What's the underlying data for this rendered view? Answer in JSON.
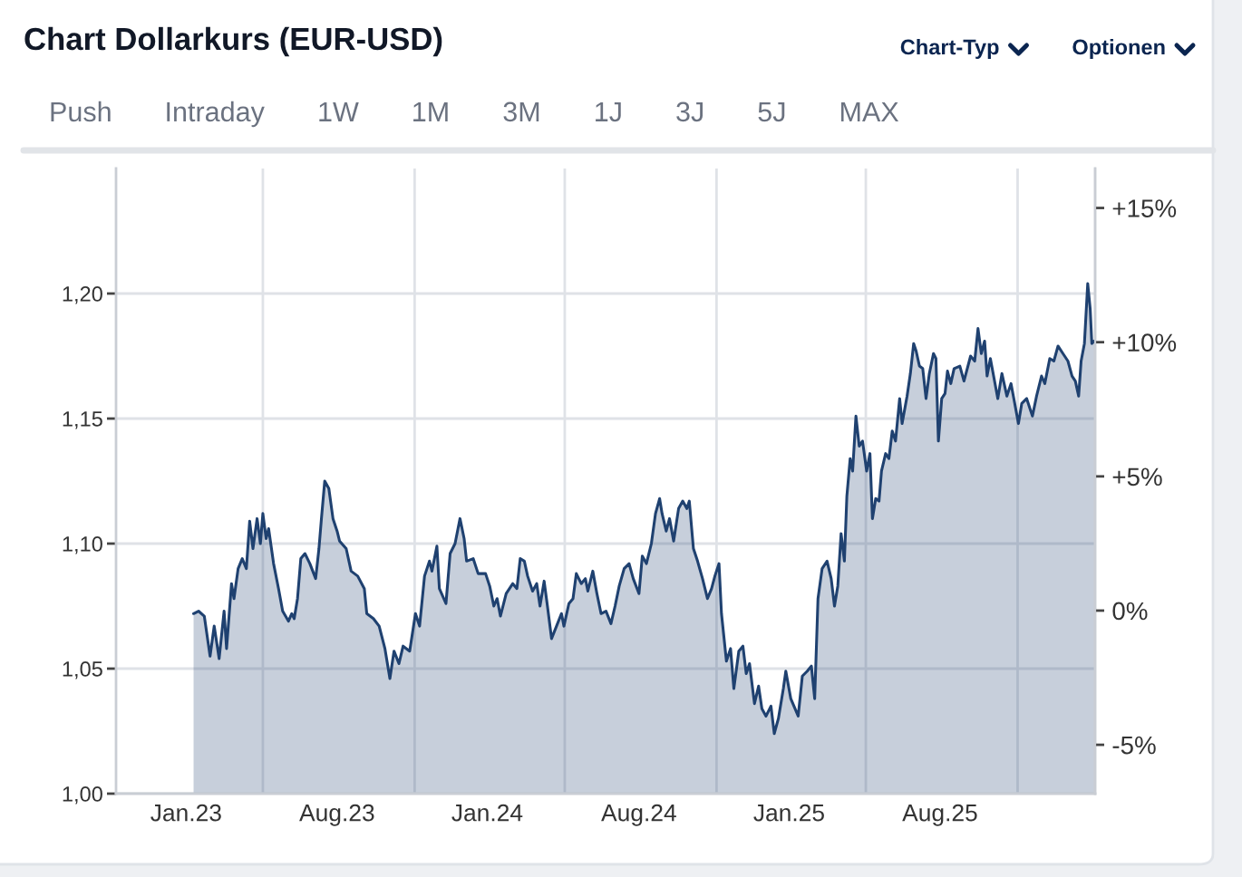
{
  "chart_data": {
    "type": "area",
    "title": "Chart Dollarkurs (EUR-USD)",
    "annotations": [
      "Chart-Typ",
      "Optionen",
      "Push",
      "Intraday",
      "1W",
      "1M",
      "3M",
      "1J",
      "3J",
      "5J",
      "MAX"
    ],
    "x": [
      "2023-02-09",
      "2023-02-15",
      "2023-02-22",
      "2023-03-01",
      "2023-03-06",
      "2023-03-12",
      "2023-03-18",
      "2023-03-21",
      "2023-03-27",
      "2023-03-30",
      "2023-04-04",
      "2023-04-09",
      "2023-04-14",
      "2023-04-18",
      "2023-04-22",
      "2023-04-27",
      "2023-05-01",
      "2023-05-04",
      "2023-05-08",
      "2023-05-11",
      "2023-05-17",
      "2023-05-23",
      "2023-05-28",
      "2023-06-04",
      "2023-06-08",
      "2023-06-11",
      "2023-06-15",
      "2023-06-19",
      "2023-06-24",
      "2023-06-30",
      "2023-07-07",
      "2023-07-11",
      "2023-07-14",
      "2023-07-18",
      "2023-07-23",
      "2023-07-28",
      "2023-08-02",
      "2023-08-05",
      "2023-08-13",
      "2023-08-19",
      "2023-08-27",
      "2023-09-04",
      "2023-09-07",
      "2023-09-15",
      "2023-09-22",
      "2023-09-29",
      "2023-10-05",
      "2023-10-10",
      "2023-10-16",
      "2023-10-21",
      "2023-10-29",
      "2023-11-05",
      "2023-11-10",
      "2023-11-16",
      "2023-11-22",
      "2023-11-25",
      "2023-12-01",
      "2023-12-04",
      "2023-12-12",
      "2023-12-17",
      "2023-12-23",
      "2023-12-29",
      "2024-01-03",
      "2024-01-06",
      "2024-01-14",
      "2024-01-20",
      "2024-01-29",
      "2024-02-03",
      "2024-02-08",
      "2024-02-12",
      "2024-02-16",
      "2024-02-23",
      "2024-03-02",
      "2024-03-07",
      "2024-03-11",
      "2024-03-16",
      "2024-03-20",
      "2024-03-26",
      "2024-03-31",
      "2024-04-04",
      "2024-04-09",
      "2024-04-13",
      "2024-04-18",
      "2024-04-24",
      "2024-04-30",
      "2024-05-03",
      "2024-05-09",
      "2024-05-14",
      "2024-05-18",
      "2024-05-24",
      "2024-05-29",
      "2024-06-01",
      "2024-06-07",
      "2024-06-12",
      "2024-06-17",
      "2024-06-23",
      "2024-06-29",
      "2024-07-04",
      "2024-07-09",
      "2024-07-15",
      "2024-07-21",
      "2024-07-26",
      "2024-08-02",
      "2024-08-06",
      "2024-08-11",
      "2024-08-17",
      "2024-08-22",
      "2024-08-27",
      "2024-08-30",
      "2024-09-04",
      "2024-09-08",
      "2024-09-13",
      "2024-09-19",
      "2024-09-24",
      "2024-09-29",
      "2024-10-02",
      "2024-10-07",
      "2024-10-12",
      "2024-10-18",
      "2024-10-24",
      "2024-10-29",
      "2024-11-02",
      "2024-11-07",
      "2024-11-10",
      "2024-11-16",
      "2024-11-21",
      "2024-11-25",
      "2024-12-01",
      "2024-12-06",
      "2024-12-10",
      "2024-12-14",
      "2024-12-20",
      "2024-12-25",
      "2024-12-29",
      "2025-01-03",
      "2025-01-09",
      "2025-01-13",
      "2025-01-18",
      "2025-01-24",
      "2025-01-27",
      "2025-02-02",
      "2025-02-11",
      "2025-02-16",
      "2025-02-22",
      "2025-02-27",
      "2025-03-03",
      "2025-03-07",
      "2025-03-12",
      "2025-03-18",
      "2025-03-23",
      "2025-03-27",
      "2025-03-31",
      "2025-04-04",
      "2025-04-08",
      "2025-04-11",
      "2025-04-15",
      "2025-04-18",
      "2025-04-22",
      "2025-04-26",
      "2025-04-30",
      "2025-05-05",
      "2025-05-09",
      "2025-05-12",
      "2025-05-16",
      "2025-05-20",
      "2025-05-23",
      "2025-05-28",
      "2025-06-01",
      "2025-06-05",
      "2025-06-09",
      "2025-06-14",
      "2025-06-17",
      "2025-06-23",
      "2025-06-27",
      "2025-07-01",
      "2025-07-04",
      "2025-07-08",
      "2025-07-12",
      "2025-07-16",
      "2025-07-20",
      "2025-07-25",
      "2025-07-28",
      "2025-07-31",
      "2025-08-04",
      "2025-08-08",
      "2025-08-11",
      "2025-08-15",
      "2025-08-19",
      "2025-08-26",
      "2025-08-31",
      "2025-09-08",
      "2025-09-13",
      "2025-09-17",
      "2025-09-21",
      "2025-09-25",
      "2025-09-28",
      "2025-10-02",
      "2025-10-11",
      "2025-10-16",
      "2025-10-22",
      "2025-10-27",
      "2025-10-31",
      "2025-11-05",
      "2025-11-09",
      "2025-11-15",
      "2025-11-22",
      "2025-11-27",
      "2025-12-03",
      "2025-12-07",
      "2025-12-13",
      "2025-12-18",
      "2025-12-23",
      "2025-12-29",
      "2026-01-04",
      "2026-01-09",
      "2026-01-13",
      "2026-01-17",
      "2026-01-20",
      "2026-01-24",
      "2026-01-28",
      "2026-01-31",
      "2026-02-02",
      "2026-02-05"
    ],
    "series": [
      {
        "color": "#1f4170",
        "values": [
          1.072,
          1.073,
          1.071,
          1.055,
          1.067,
          1.054,
          1.073,
          1.058,
          1.084,
          1.078,
          1.09,
          1.094,
          1.09,
          1.109,
          1.098,
          1.11,
          1.1,
          1.112,
          1.102,
          1.106,
          1.092,
          1.082,
          1.073,
          1.069,
          1.072,
          1.07,
          1.078,
          1.094,
          1.096,
          1.092,
          1.086,
          1.098,
          1.11,
          1.125,
          1.122,
          1.11,
          1.105,
          1.101,
          1.098,
          1.089,
          1.087,
          1.082,
          1.072,
          1.07,
          1.067,
          1.058,
          1.046,
          1.057,
          1.052,
          1.059,
          1.057,
          1.072,
          1.067,
          1.087,
          1.093,
          1.089,
          1.099,
          1.082,
          1.076,
          1.096,
          1.1,
          1.11,
          1.102,
          1.093,
          1.094,
          1.088,
          1.088,
          1.083,
          1.075,
          1.078,
          1.071,
          1.08,
          1.084,
          1.082,
          1.094,
          1.093,
          1.087,
          1.081,
          1.084,
          1.075,
          1.085,
          1.075,
          1.062,
          1.067,
          1.072,
          1.067,
          1.076,
          1.078,
          1.088,
          1.084,
          1.086,
          1.081,
          1.089,
          1.08,
          1.072,
          1.073,
          1.068,
          1.075,
          1.083,
          1.09,
          1.092,
          1.086,
          1.08,
          1.095,
          1.092,
          1.1,
          1.112,
          1.118,
          1.112,
          1.105,
          1.11,
          1.101,
          1.114,
          1.117,
          1.114,
          1.117,
          1.098,
          1.093,
          1.086,
          1.078,
          1.082,
          1.087,
          1.092,
          1.072,
          1.053,
          1.058,
          1.042,
          1.057,
          1.059,
          1.048,
          1.052,
          1.036,
          1.043,
          1.034,
          1.031,
          1.035,
          1.024,
          1.03,
          1.042,
          1.049,
          1.038,
          1.031,
          1.047,
          1.049,
          1.051,
          1.038,
          1.078,
          1.09,
          1.093,
          1.086,
          1.075,
          1.083,
          1.104,
          1.093,
          1.119,
          1.134,
          1.129,
          1.151,
          1.139,
          1.141,
          1.129,
          1.136,
          1.11,
          1.118,
          1.117,
          1.129,
          1.136,
          1.134,
          1.145,
          1.141,
          1.158,
          1.148,
          1.159,
          1.168,
          1.18,
          1.177,
          1.171,
          1.17,
          1.158,
          1.168,
          1.176,
          1.174,
          1.141,
          1.158,
          1.16,
          1.169,
          1.164,
          1.17,
          1.171,
          1.165,
          1.175,
          1.173,
          1.186,
          1.176,
          1.181,
          1.167,
          1.174,
          1.158,
          1.168,
          1.159,
          1.164,
          1.157,
          1.148,
          1.156,
          1.158,
          1.151,
          1.159,
          1.167,
          1.164,
          1.174,
          1.173,
          1.179,
          1.176,
          1.173,
          1.167,
          1.165,
          1.159,
          1.173,
          1.18,
          1.204,
          1.194,
          1.18,
          1.181
        ]
      }
    ],
    "xlim": [
      "2022-11-07",
      "2026-02-06"
    ],
    "xticks": [
      {
        "value": "2023-01-31",
        "label": "Jan.23"
      },
      {
        "value": "2023-05-04",
        "label": null
      },
      {
        "value": "2023-08-02",
        "label": "Aug.23"
      },
      {
        "value": "2023-11-04",
        "label": null
      },
      {
        "value": "2024-01-31",
        "label": "Jan.24"
      },
      {
        "value": "2024-05-04",
        "label": null
      },
      {
        "value": "2024-08-02",
        "label": "Aug.24"
      },
      {
        "value": "2024-11-04",
        "label": null
      },
      {
        "value": "2025-01-31",
        "label": "Jan.25"
      },
      {
        "value": "2025-05-04",
        "label": null
      },
      {
        "value": "2025-08-02",
        "label": "Aug.25"
      },
      {
        "value": "2025-11-04",
        "label": null
      }
    ],
    "ylim": [
      1.0,
      1.25
    ],
    "yticks": [
      {
        "value": 1.0,
        "label": "1,00"
      },
      {
        "value": 1.05,
        "label": "1,05"
      },
      {
        "value": 1.1,
        "label": "1,10"
      },
      {
        "value": 1.15,
        "label": "1,15"
      },
      {
        "value": 1.2,
        "label": "1,20"
      }
    ],
    "y2lim": [
      -6.82,
      16.47
    ],
    "y2ticks": [
      {
        "value": -5,
        "label": "-5%"
      },
      {
        "value": 0,
        "label": "0%"
      },
      {
        "value": 5,
        "label": "+5%"
      },
      {
        "value": 10,
        "label": "+10%"
      },
      {
        "value": 15,
        "label": "+15%"
      }
    ],
    "grid": true
  }
}
